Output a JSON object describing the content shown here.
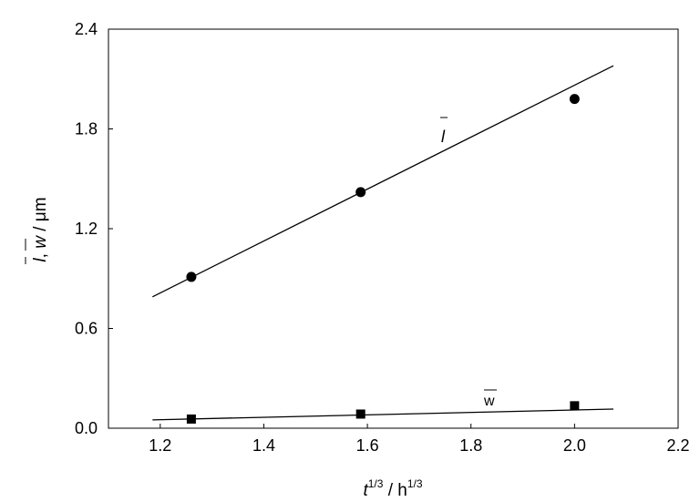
{
  "chart_data": {
    "type": "scatter",
    "xlabel": {
      "base": "t",
      "sup1": "1/3",
      "mid": " / h",
      "sup2": "1/3"
    },
    "ylabel": {
      "part1": "l",
      "sep": ", ",
      "part2": "w",
      "unit": " / μm"
    },
    "xlim": [
      1.1,
      2.2
    ],
    "ylim": [
      0.0,
      2.4
    ],
    "x_ticks": [
      "1.2",
      "1.4",
      "1.6",
      "1.8",
      "2.0",
      "2.2"
    ],
    "y_ticks": [
      "0.0",
      "0.6",
      "1.2",
      "1.8",
      "2.4"
    ],
    "grid": false,
    "series": [
      {
        "name": "l",
        "marker": "circle",
        "x": [
          1.26,
          1.587,
          2.0
        ],
        "y": [
          0.91,
          1.42,
          1.98
        ],
        "fit": {
          "x": [
            1.185,
            2.075
          ],
          "y": [
            0.79,
            2.18
          ]
        }
      },
      {
        "name": "w",
        "marker": "square",
        "x": [
          1.26,
          1.587,
          2.0
        ],
        "y": [
          0.055,
          0.085,
          0.135
        ],
        "fit": {
          "x": [
            1.185,
            2.075
          ],
          "y": [
            0.05,
            0.115
          ]
        }
      }
    ]
  }
}
